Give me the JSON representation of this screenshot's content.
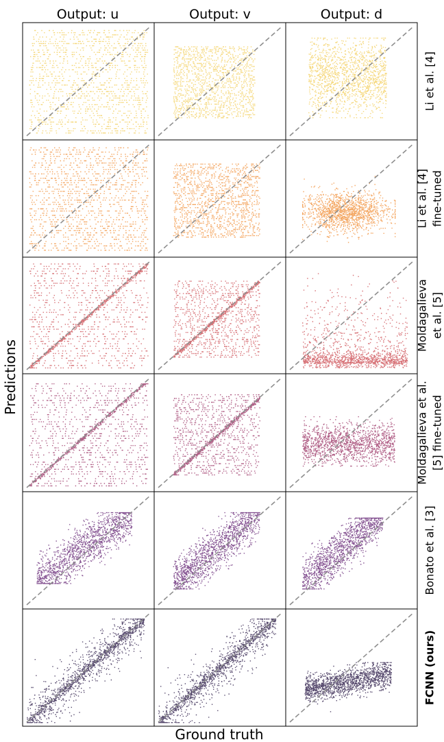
{
  "figure": {
    "xlabel": "Ground truth",
    "ylabel": "Predictions"
  },
  "columns": [
    "Output: u",
    "Output: v",
    "Output: d"
  ],
  "rows": [
    {
      "label_lines": [
        "Li et al. [4]"
      ],
      "bold": false,
      "color": "#f2c94c"
    },
    {
      "label_lines": [
        "Li et al. [4]",
        "fine-tuned"
      ],
      "bold": false,
      "color": "#f08a2e"
    },
    {
      "label_lines": [
        "Moldagalieva",
        "et al. [5]"
      ],
      "bold": false,
      "color": "#c9434a"
    },
    {
      "label_lines": [
        "Moldagalieva et al.",
        "[5] fine-tuned"
      ],
      "bold": false,
      "color": "#962a5e"
    },
    {
      "label_lines": [
        "Bonato et al. [3]"
      ],
      "bold": false,
      "color": "#5c1a6e"
    },
    {
      "label_lines": [
        "FCNN (ours)"
      ],
      "bold": true,
      "color": "#1f0d3e"
    }
  ],
  "chart_data": {
    "type": "scatter",
    "description_axes": "grid of 6 methods x 3 outputs; each panel plots predictions vs ground truth with a dashed y=x reference line",
    "x_range": [
      0,
      1
    ],
    "y_range": [
      0,
      1
    ],
    "reference_line": "y = x (dashed gray)",
    "grid": false,
    "panels": [
      {
        "row": 0,
        "col": 0,
        "pattern": "banded",
        "x_range": [
          0.02,
          0.98
        ],
        "y_range": [
          0.03,
          0.97
        ]
      },
      {
        "row": 0,
        "col": 1,
        "pattern": "banded",
        "x_range": [
          0.12,
          0.78
        ],
        "y_range": [
          0.17,
          0.82
        ]
      },
      {
        "row": 0,
        "col": 2,
        "pattern": "cloud",
        "x_range": [
          0.15,
          0.78
        ],
        "y_range": [
          0.17,
          0.9
        ]
      },
      {
        "row": 1,
        "col": 0,
        "pattern": "banded",
        "x_range": [
          0.02,
          0.98
        ],
        "y_range": [
          0.03,
          0.97
        ]
      },
      {
        "row": 1,
        "col": 1,
        "pattern": "banded",
        "x_range": [
          0.12,
          0.82
        ],
        "y_range": [
          0.15,
          0.82
        ]
      },
      {
        "row": 1,
        "col": 2,
        "pattern": "horizontal",
        "x_range": [
          0.1,
          0.85
        ],
        "y_range": [
          0.1,
          0.75
        ]
      },
      {
        "row": 2,
        "col": 0,
        "pattern": "banded_diag",
        "x_range": [
          0.02,
          0.98
        ],
        "y_range": [
          0.02,
          0.98
        ]
      },
      {
        "row": 2,
        "col": 1,
        "pattern": "banded_diag",
        "x_range": [
          0.12,
          0.82
        ],
        "y_range": [
          0.12,
          0.82
        ]
      },
      {
        "row": 2,
        "col": 2,
        "pattern": "spread",
        "x_range": [
          0.1,
          0.95
        ],
        "y_range": [
          0.02,
          0.9
        ]
      },
      {
        "row": 3,
        "col": 0,
        "pattern": "banded_diag",
        "x_range": [
          0.02,
          0.98
        ],
        "y_range": [
          0.02,
          0.95
        ]
      },
      {
        "row": 3,
        "col": 1,
        "pattern": "banded_diag",
        "x_range": [
          0.12,
          0.82
        ],
        "y_range": [
          0.12,
          0.85
        ]
      },
      {
        "row": 3,
        "col": 2,
        "pattern": "cloud_low",
        "x_range": [
          0.1,
          0.85
        ],
        "y_range": [
          0.2,
          0.65
        ]
      },
      {
        "row": 4,
        "col": 0,
        "pattern": "diagonal_wide",
        "x_range": [
          0.08,
          0.85
        ],
        "y_range": [
          0.2,
          0.85
        ]
      },
      {
        "row": 4,
        "col": 1,
        "pattern": "diagonal_wide",
        "x_range": [
          0.12,
          0.82
        ],
        "y_range": [
          0.15,
          0.85
        ]
      },
      {
        "row": 4,
        "col": 2,
        "pattern": "diagonal_wide",
        "x_range": [
          0.1,
          0.75
        ],
        "y_range": [
          0.15,
          0.8
        ]
      },
      {
        "row": 5,
        "col": 0,
        "pattern": "diagonal_tight",
        "x_range": [
          0.0,
          0.95
        ],
        "y_range": [
          0.0,
          0.95
        ]
      },
      {
        "row": 5,
        "col": 1,
        "pattern": "diagonal_tight",
        "x_range": [
          0.0,
          0.95
        ],
        "y_range": [
          0.0,
          0.95
        ]
      },
      {
        "row": 5,
        "col": 2,
        "pattern": "flat",
        "x_range": [
          0.12,
          0.82
        ],
        "y_range": [
          0.1,
          0.55
        ]
      }
    ]
  }
}
